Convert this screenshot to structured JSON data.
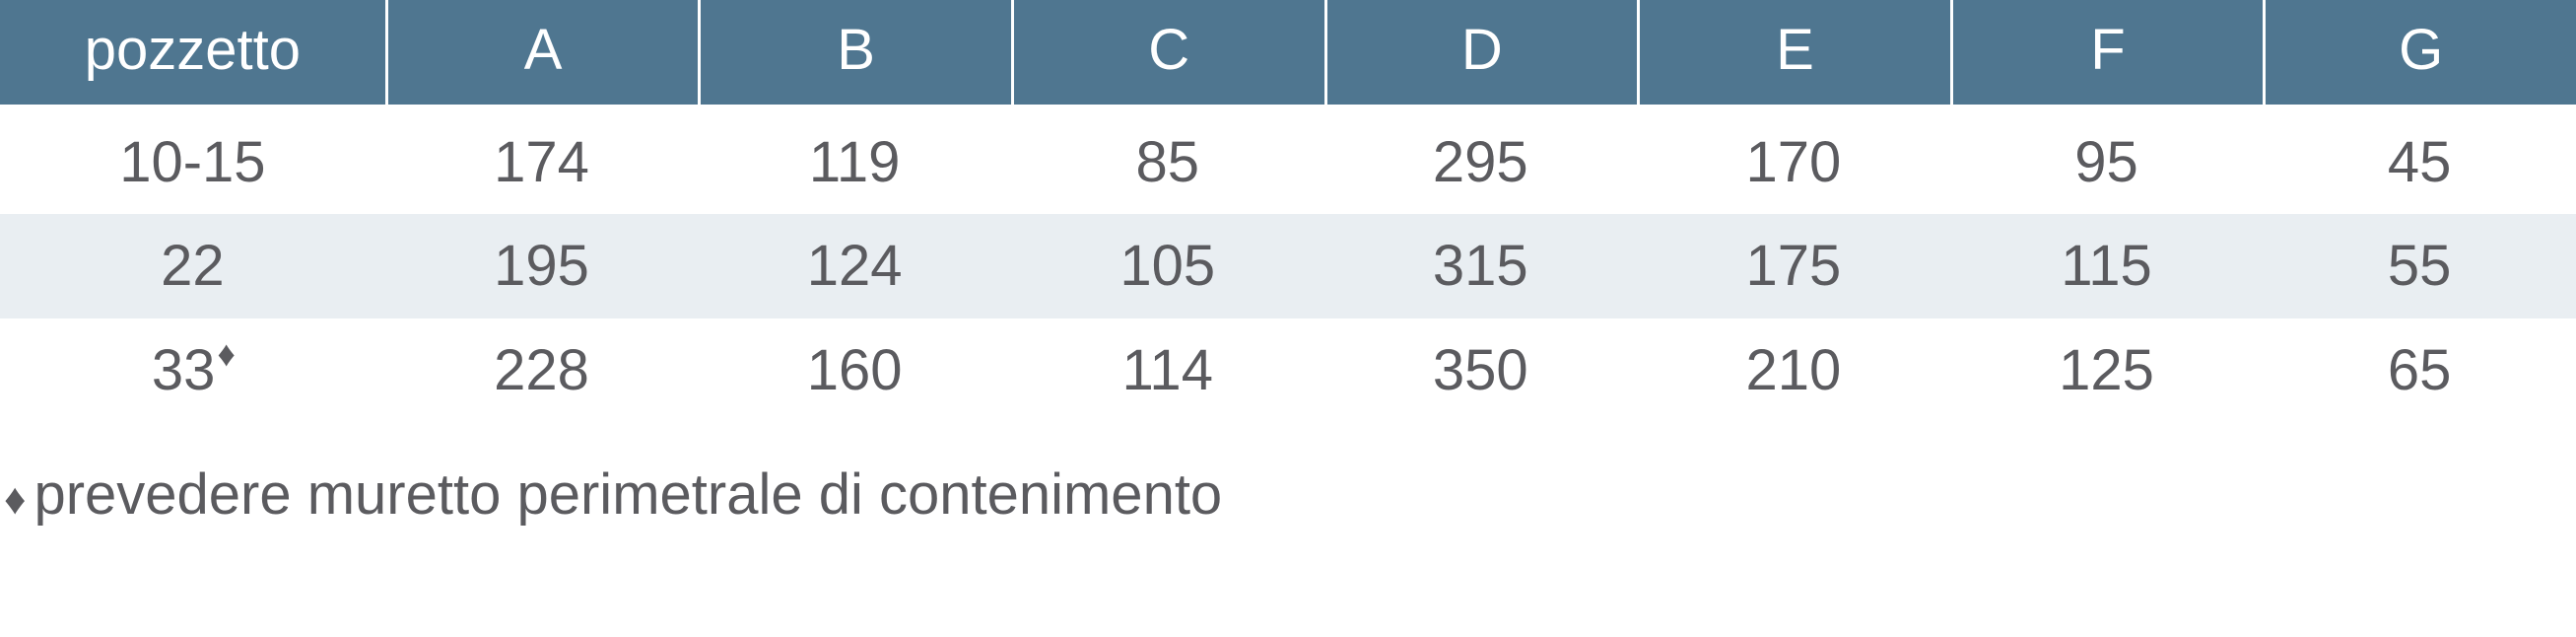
{
  "table": {
    "header_bg": "#4f7690",
    "header_text_color": "#ffffff",
    "body_text_color": "#5b5b5f",
    "alt_row_bg": "#e9eef2",
    "border_color": "#ffffff",
    "font_size": 58,
    "columns": [
      "pozzetto",
      "A",
      "B",
      "C",
      "D",
      "E",
      "F",
      "G"
    ],
    "rows": [
      {
        "pozzetto": "10-15",
        "has_diamond": false,
        "values": [
          "174",
          "119",
          "85",
          "295",
          "170",
          "95",
          "45"
        ]
      },
      {
        "pozzetto": "22",
        "has_diamond": false,
        "values": [
          "195",
          "124",
          "105",
          "315",
          "175",
          "115",
          "55"
        ]
      },
      {
        "pozzetto": "33",
        "has_diamond": true,
        "values": [
          "228",
          "160",
          "114",
          "350",
          "210",
          "125",
          "65"
        ]
      }
    ]
  },
  "footnote": {
    "symbol": "♦",
    "text": "prevedere muretto perimetrale di contenimento"
  }
}
